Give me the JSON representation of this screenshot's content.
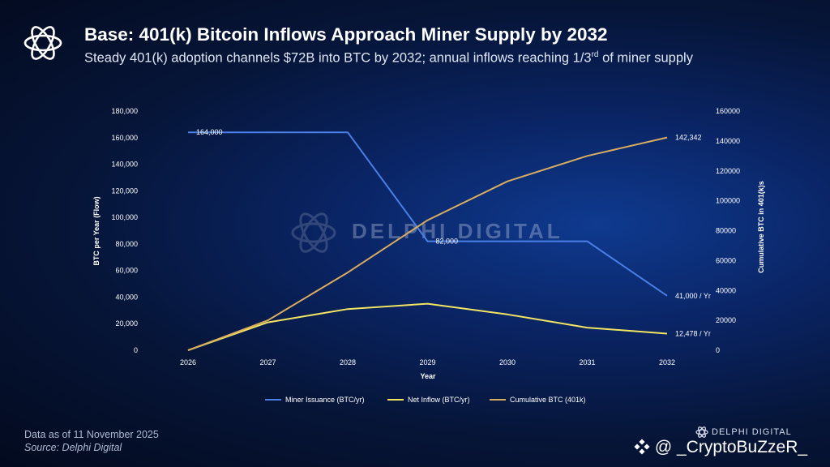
{
  "header": {
    "title": "Base: 401(k) Bitcoin Inflows Approach Miner Supply by 2032",
    "subtitle_main": "Steady 401(k) adoption channels $72B into BTC by 2032; annual inflows reaching 1/3",
    "subtitle_sup": "rd",
    "subtitle_end": " of miner supply"
  },
  "watermark": {
    "text": "DELPHI DIGITAL"
  },
  "chart_data": {
    "type": "line",
    "x": [
      2026,
      2027,
      2028,
      2029,
      2030,
      2031,
      2032
    ],
    "xlabel": "Year",
    "ylabel_left": "BTC per Year (Flow)",
    "ylabel_right": "Cumulative BTC in 401(k)s",
    "ylim_left": [
      0,
      180000
    ],
    "ylim_right": [
      0,
      160000
    ],
    "yticks_left": [
      "180,000",
      "160,000",
      "140,000",
      "120,000",
      "100,000",
      "80,000",
      "60,000",
      "40,000",
      "20,000",
      "0"
    ],
    "yticks_right": [
      "160000",
      "140000",
      "120000",
      "100000",
      "80000",
      "60000",
      "40000",
      "20000",
      "0"
    ],
    "series": [
      {
        "name": "Miner Issuance (BTC/yr)",
        "axis": "left",
        "color": "#4a7fe6",
        "values": [
          164000,
          164000,
          164000,
          82000,
          82000,
          82000,
          41000
        ],
        "labels": [
          [
            "164,000",
            0
          ],
          [
            "82,000",
            3
          ],
          [
            "41,000 / Yr",
            6
          ]
        ]
      },
      {
        "name": "Net Inflow (BTC/yr)",
        "axis": "left",
        "color": "#f2e561",
        "values": [
          0,
          21000,
          31000,
          35000,
          27000,
          17000,
          12478
        ],
        "labels": [
          [
            "12,478 / Yr",
            6
          ]
        ]
      },
      {
        "name": "Cumulative BTC (401k)",
        "axis": "right",
        "color": "#d9ad5f",
        "values": [
          0,
          20000,
          52000,
          87000,
          113000,
          130000,
          142342
        ],
        "labels": [
          [
            "142,342",
            6
          ]
        ]
      }
    ],
    "legend": "bottom"
  },
  "footer": {
    "date": "Data as of 11 November 2025",
    "source": "Source: Delphi Digital",
    "brand": "DELPHI DIGITAL",
    "handle": "@ _CryptoBuZzeR_"
  }
}
